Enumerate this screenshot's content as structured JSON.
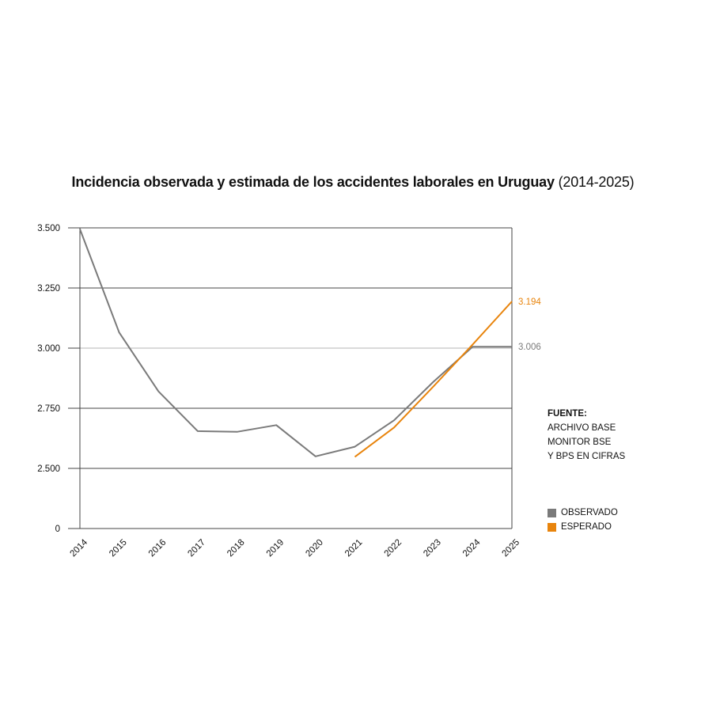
{
  "title": {
    "bold": "Incidencia observada y estimada de los accidentes laborales en Uruguay",
    "range": "(2014-2025)"
  },
  "source": {
    "heading": "FUENTE:",
    "lines": [
      "ARCHIVO BASE",
      "MONITOR BSE",
      "Y BPS EN CIFRAS"
    ]
  },
  "legend": [
    {
      "label": "OBSERVADO",
      "color": "#7a7a7a"
    },
    {
      "label": "ESPERADO",
      "color": "#e8840c"
    }
  ],
  "chart_data": {
    "type": "line",
    "title": "Incidencia observada y estimada de los accidentes laborales en Uruguay (2014-2025)",
    "xlabel": "",
    "ylabel": "",
    "ylim": [
      0,
      3500
    ],
    "y_axis_break": "between 0 and 2.500",
    "y_ticks": [
      {
        "value": 0,
        "label": "0"
      },
      {
        "value": 2500,
        "label": "2.500"
      },
      {
        "value": 2750,
        "label": "2.750"
      },
      {
        "value": 3000,
        "label": "3.000"
      },
      {
        "value": 3250,
        "label": "3.250"
      },
      {
        "value": 3500,
        "label": "3.500"
      }
    ],
    "x": [
      "2014",
      "2015",
      "2016",
      "2017",
      "2018",
      "2019",
      "2020",
      "2021",
      "2022",
      "2023",
      "2024",
      "2025"
    ],
    "grid": true,
    "legend_position": "right",
    "series": [
      {
        "name": "OBSERVADO",
        "color": "#7a7a7a",
        "points": [
          {
            "x": "2014",
            "y": 3495
          },
          {
            "x": "2015",
            "y": 3065
          },
          {
            "x": "2016",
            "y": 2820
          },
          {
            "x": "2017",
            "y": 2655
          },
          {
            "x": "2018",
            "y": 2652
          },
          {
            "x": "2019",
            "y": 2680
          },
          {
            "x": "2020",
            "y": 2550
          },
          {
            "x": "2021",
            "y": 2590
          },
          {
            "x": "2022",
            "y": 2700
          },
          {
            "x": "2023",
            "y": 2860
          },
          {
            "x": "2024",
            "y": 3006
          },
          {
            "x": "2025",
            "y": 3006
          }
        ],
        "end_label": "3.006"
      },
      {
        "name": "ESPERADO",
        "color": "#e8840c",
        "points": [
          {
            "x": "2021",
            "y": 2548
          },
          {
            "x": "2022",
            "y": 2670
          },
          {
            "x": "2023",
            "y": 2840
          },
          {
            "x": "2024",
            "y": 3015
          },
          {
            "x": "2025",
            "y": 3194
          }
        ],
        "end_label": "3.194"
      }
    ]
  }
}
